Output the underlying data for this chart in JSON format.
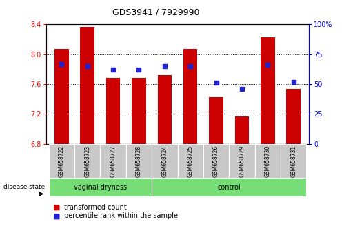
{
  "title": "GDS3941 / 7929990",
  "samples": [
    "GSM658722",
    "GSM658723",
    "GSM658727",
    "GSM658728",
    "GSM658724",
    "GSM658725",
    "GSM658726",
    "GSM658729",
    "GSM658730",
    "GSM658731"
  ],
  "groups": [
    "vaginal dryness",
    "vaginal dryness",
    "vaginal dryness",
    "vaginal dryness",
    "control",
    "control",
    "control",
    "control",
    "control",
    "control"
  ],
  "bar_values": [
    8.07,
    8.37,
    7.68,
    7.68,
    7.72,
    8.07,
    7.43,
    7.17,
    8.23,
    7.54
  ],
  "dot_values": [
    67,
    65,
    62,
    62,
    65,
    65,
    51,
    46,
    66,
    52
  ],
  "ylim_left": [
    6.8,
    8.4
  ],
  "ylim_right": [
    0,
    100
  ],
  "yticks_left": [
    6.8,
    7.2,
    7.6,
    8.0,
    8.4
  ],
  "yticks_right": [
    0,
    25,
    50,
    75,
    100
  ],
  "bar_color": "#CC0000",
  "dot_color": "#2222CC",
  "label_area_color": "#C8C8C8",
  "group_bar_color": "#77DD77",
  "legend_items": [
    "transformed count",
    "percentile rank within the sample"
  ],
  "disease_state_label": "disease state",
  "grid_yticks": [
    7.2,
    7.6,
    8.0
  ],
  "group_ranges": [
    [
      0,
      3,
      "vaginal dryness"
    ],
    [
      4,
      9,
      "control"
    ]
  ]
}
